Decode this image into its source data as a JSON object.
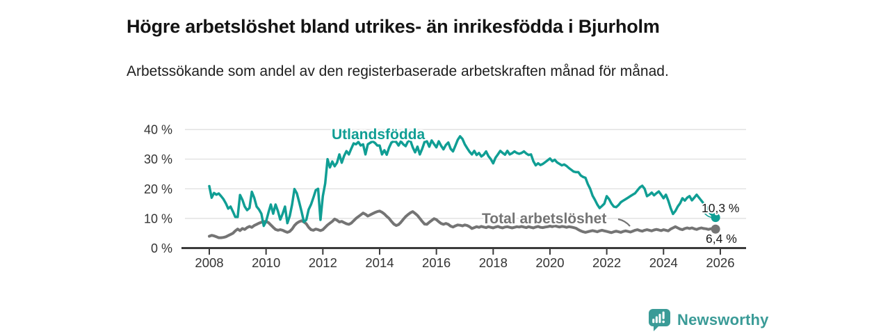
{
  "header": {
    "title": "Högre arbetslöshet bland utrikes- än inrikesfödda i Bjurholm",
    "subtitle": "Arbetssökande som andel av den registerbaserade arbetskraften månad för månad."
  },
  "footer": {
    "brand": "Newsworthy"
  },
  "chart_data": {
    "type": "line",
    "title": "Högre arbetslöshet bland utrikes- än inrikesfödda i Bjurholm",
    "subtitle": "Arbetssökande som andel av den registerbaserade arbetskraften månad för månad.",
    "xlabel": "",
    "ylabel": "",
    "grid": true,
    "legend_position": "inline-labels",
    "ylim": [
      0,
      40
    ],
    "xlim": [
      2007,
      2027
    ],
    "x_start_year": 2008,
    "points_per_month": 1,
    "x_axis": {
      "values": [
        2008,
        2010,
        2012,
        2014,
        2016,
        2018,
        2020,
        2022,
        2024,
        2026
      ],
      "labels": [
        "2008",
        "2010",
        "2012",
        "2014",
        "2016",
        "2018",
        "2020",
        "2022",
        "2024",
        "2026"
      ]
    },
    "y_axis": {
      "values": [
        0,
        10,
        20,
        30,
        40
      ],
      "labels": [
        "0 %",
        "10 %",
        "20 %",
        "30 %",
        "40 %"
      ]
    },
    "style": {
      "accent_teal": "#109e94",
      "series_gray": "#747474",
      "grid_color": "#dcdcdc",
      "axis_color": "#3b3b3b",
      "axis_text_color": "#333333",
      "value_label_color": "#1a1a1a",
      "logo_teal": "#3a9b97"
    },
    "series": [
      {
        "name": "Utlandsfödda",
        "color": "#109e94",
        "end_label": "10,3 %",
        "end_value": 10.3,
        "values": [
          20.9,
          17.0,
          18.6,
          18.0,
          18.4,
          17.5,
          16.5,
          15.1,
          13.3,
          14.0,
          12.3,
          10.5,
          10.5,
          17.9,
          16.3,
          14.0,
          12.8,
          13.5,
          19.0,
          17.0,
          14.0,
          13.0,
          11.6,
          7.5,
          9.0,
          12.0,
          14.7,
          11.6,
          14.7,
          12.5,
          9.6,
          11.6,
          14.0,
          8.4,
          10.8,
          14.7,
          19.9,
          18.5,
          15.5,
          12.3,
          8.8,
          9.5,
          13.0,
          14.7,
          17.0,
          19.5,
          20.0,
          9.5,
          17.5,
          21.8,
          30.0,
          27.2,
          29.2,
          27.6,
          28.8,
          31.6,
          28.8,
          31.1,
          32.7,
          31.6,
          33.5,
          35.3,
          35.0,
          35.8,
          34.6,
          35.0,
          31.6,
          35.0,
          35.5,
          36.0,
          35.5,
          34.6,
          34.6,
          31.6,
          33.0,
          31.5,
          33.9,
          35.6,
          36.0,
          35.8,
          34.6,
          36.0,
          35.0,
          34.4,
          36.0,
          36.3,
          34.0,
          32.3,
          34.2,
          31.6,
          33.5,
          35.8,
          36.0,
          34.2,
          36.3,
          35.1,
          34.0,
          36.0,
          34.5,
          33.3,
          34.8,
          35.6,
          33.5,
          32.6,
          34.5,
          36.5,
          37.7,
          36.8,
          35.0,
          33.7,
          32.5,
          31.6,
          32.8,
          31.4,
          32.1,
          30.9,
          31.5,
          32.6,
          31.0,
          30.0,
          28.6,
          30.5,
          31.6,
          32.8,
          32.1,
          31.5,
          32.8,
          31.6,
          32.0,
          32.6,
          32.1,
          31.8,
          32.1,
          32.6,
          31.9,
          31.4,
          31.6,
          29.3,
          27.9,
          28.6,
          28.0,
          28.4,
          29.0,
          29.6,
          30.2,
          29.3,
          29.8,
          28.9,
          28.4,
          27.9,
          28.2,
          27.7,
          27.0,
          26.4,
          25.8,
          25.6,
          25.6,
          24.5,
          24.0,
          23.7,
          21.6,
          20.0,
          17.7,
          16.3,
          14.7,
          13.5,
          14.2,
          15.0,
          17.5,
          16.5,
          15.0,
          14.0,
          13.8,
          14.5,
          15.5,
          16.0,
          16.5,
          17.0,
          17.5,
          18.0,
          18.5,
          19.5,
          20.5,
          21.0,
          20.0,
          17.5,
          18.0,
          18.7,
          17.8,
          18.5,
          19.1,
          18.0,
          16.8,
          18.0,
          16.0,
          13.5,
          11.5,
          12.5,
          14.0,
          15.1,
          16.8,
          16.0,
          17.0,
          17.5,
          16.1,
          17.0,
          18.0,
          17.0,
          16.0,
          15.0,
          14.0,
          12.5,
          11.5,
          10.8,
          10.3
        ]
      },
      {
        "name": "Total arbetslöshet",
        "color": "#747474",
        "end_label": "6,4 %",
        "end_value": 6.4,
        "values": [
          4.0,
          4.3,
          4.1,
          3.8,
          3.5,
          3.5,
          3.6,
          3.8,
          4.2,
          4.6,
          5.0,
          5.8,
          6.4,
          5.9,
          6.6,
          6.3,
          6.9,
          7.3,
          7.0,
          7.6,
          8.0,
          8.4,
          8.7,
          8.9,
          9.0,
          8.6,
          7.8,
          7.0,
          6.3,
          6.0,
          6.2,
          6.0,
          5.6,
          5.3,
          5.6,
          6.4,
          7.6,
          8.4,
          8.9,
          9.2,
          8.8,
          8.2,
          7.0,
          6.2,
          6.0,
          6.4,
          6.2,
          5.9,
          6.2,
          7.0,
          7.8,
          8.4,
          9.0,
          9.8,
          9.4,
          8.8,
          9.0,
          8.6,
          8.2,
          8.0,
          8.4,
          9.2,
          10.0,
          10.6,
          11.2,
          11.8,
          11.4,
          10.8,
          11.2,
          11.6,
          12.0,
          12.3,
          12.5,
          12.1,
          11.5,
          10.7,
          10.0,
          9.0,
          8.1,
          7.6,
          7.9,
          8.7,
          9.7,
          10.6,
          11.3,
          11.9,
          12.3,
          11.7,
          11.0,
          10.0,
          9.0,
          8.1,
          8.0,
          8.7,
          9.3,
          9.9,
          9.6,
          8.9,
          8.3,
          8.0,
          8.3,
          8.0,
          7.4,
          7.1,
          7.5,
          7.8,
          7.7,
          7.5,
          7.8,
          7.6,
          7.2,
          6.6,
          6.9,
          7.2,
          7.0,
          7.3,
          7.1,
          6.9,
          7.2,
          7.0,
          6.8,
          7.1,
          7.3,
          7.0,
          6.8,
          7.1,
          7.2,
          7.0,
          6.8,
          7.0,
          7.2,
          7.1,
          7.3,
          7.1,
          6.9,
          7.2,
          7.0,
          6.8,
          7.1,
          7.3,
          7.0,
          6.9,
          7.1,
          7.2,
          7.4,
          7.2,
          7.5,
          7.3,
          7.1,
          7.3,
          7.2,
          7.0,
          7.2,
          7.1,
          6.9,
          6.7,
          6.2,
          5.8,
          5.5,
          5.3,
          5.5,
          5.7,
          5.9,
          5.7,
          5.5,
          5.8,
          6.0,
          5.8,
          5.6,
          5.4,
          5.2,
          5.5,
          5.7,
          5.5,
          5.3,
          5.6,
          5.8,
          5.6,
          5.4,
          5.7,
          6.0,
          6.2,
          5.9,
          5.7,
          6.0,
          6.2,
          6.0,
          5.8,
          6.1,
          6.3,
          6.1,
          5.9,
          6.2,
          6.0,
          5.8,
          6.4,
          6.8,
          7.2,
          6.8,
          6.4,
          6.2,
          6.6,
          6.8,
          6.6,
          6.8,
          6.5,
          6.3,
          6.6,
          6.8,
          6.6,
          6.5,
          6.3,
          6.5,
          6.6,
          6.4
        ]
      }
    ]
  }
}
